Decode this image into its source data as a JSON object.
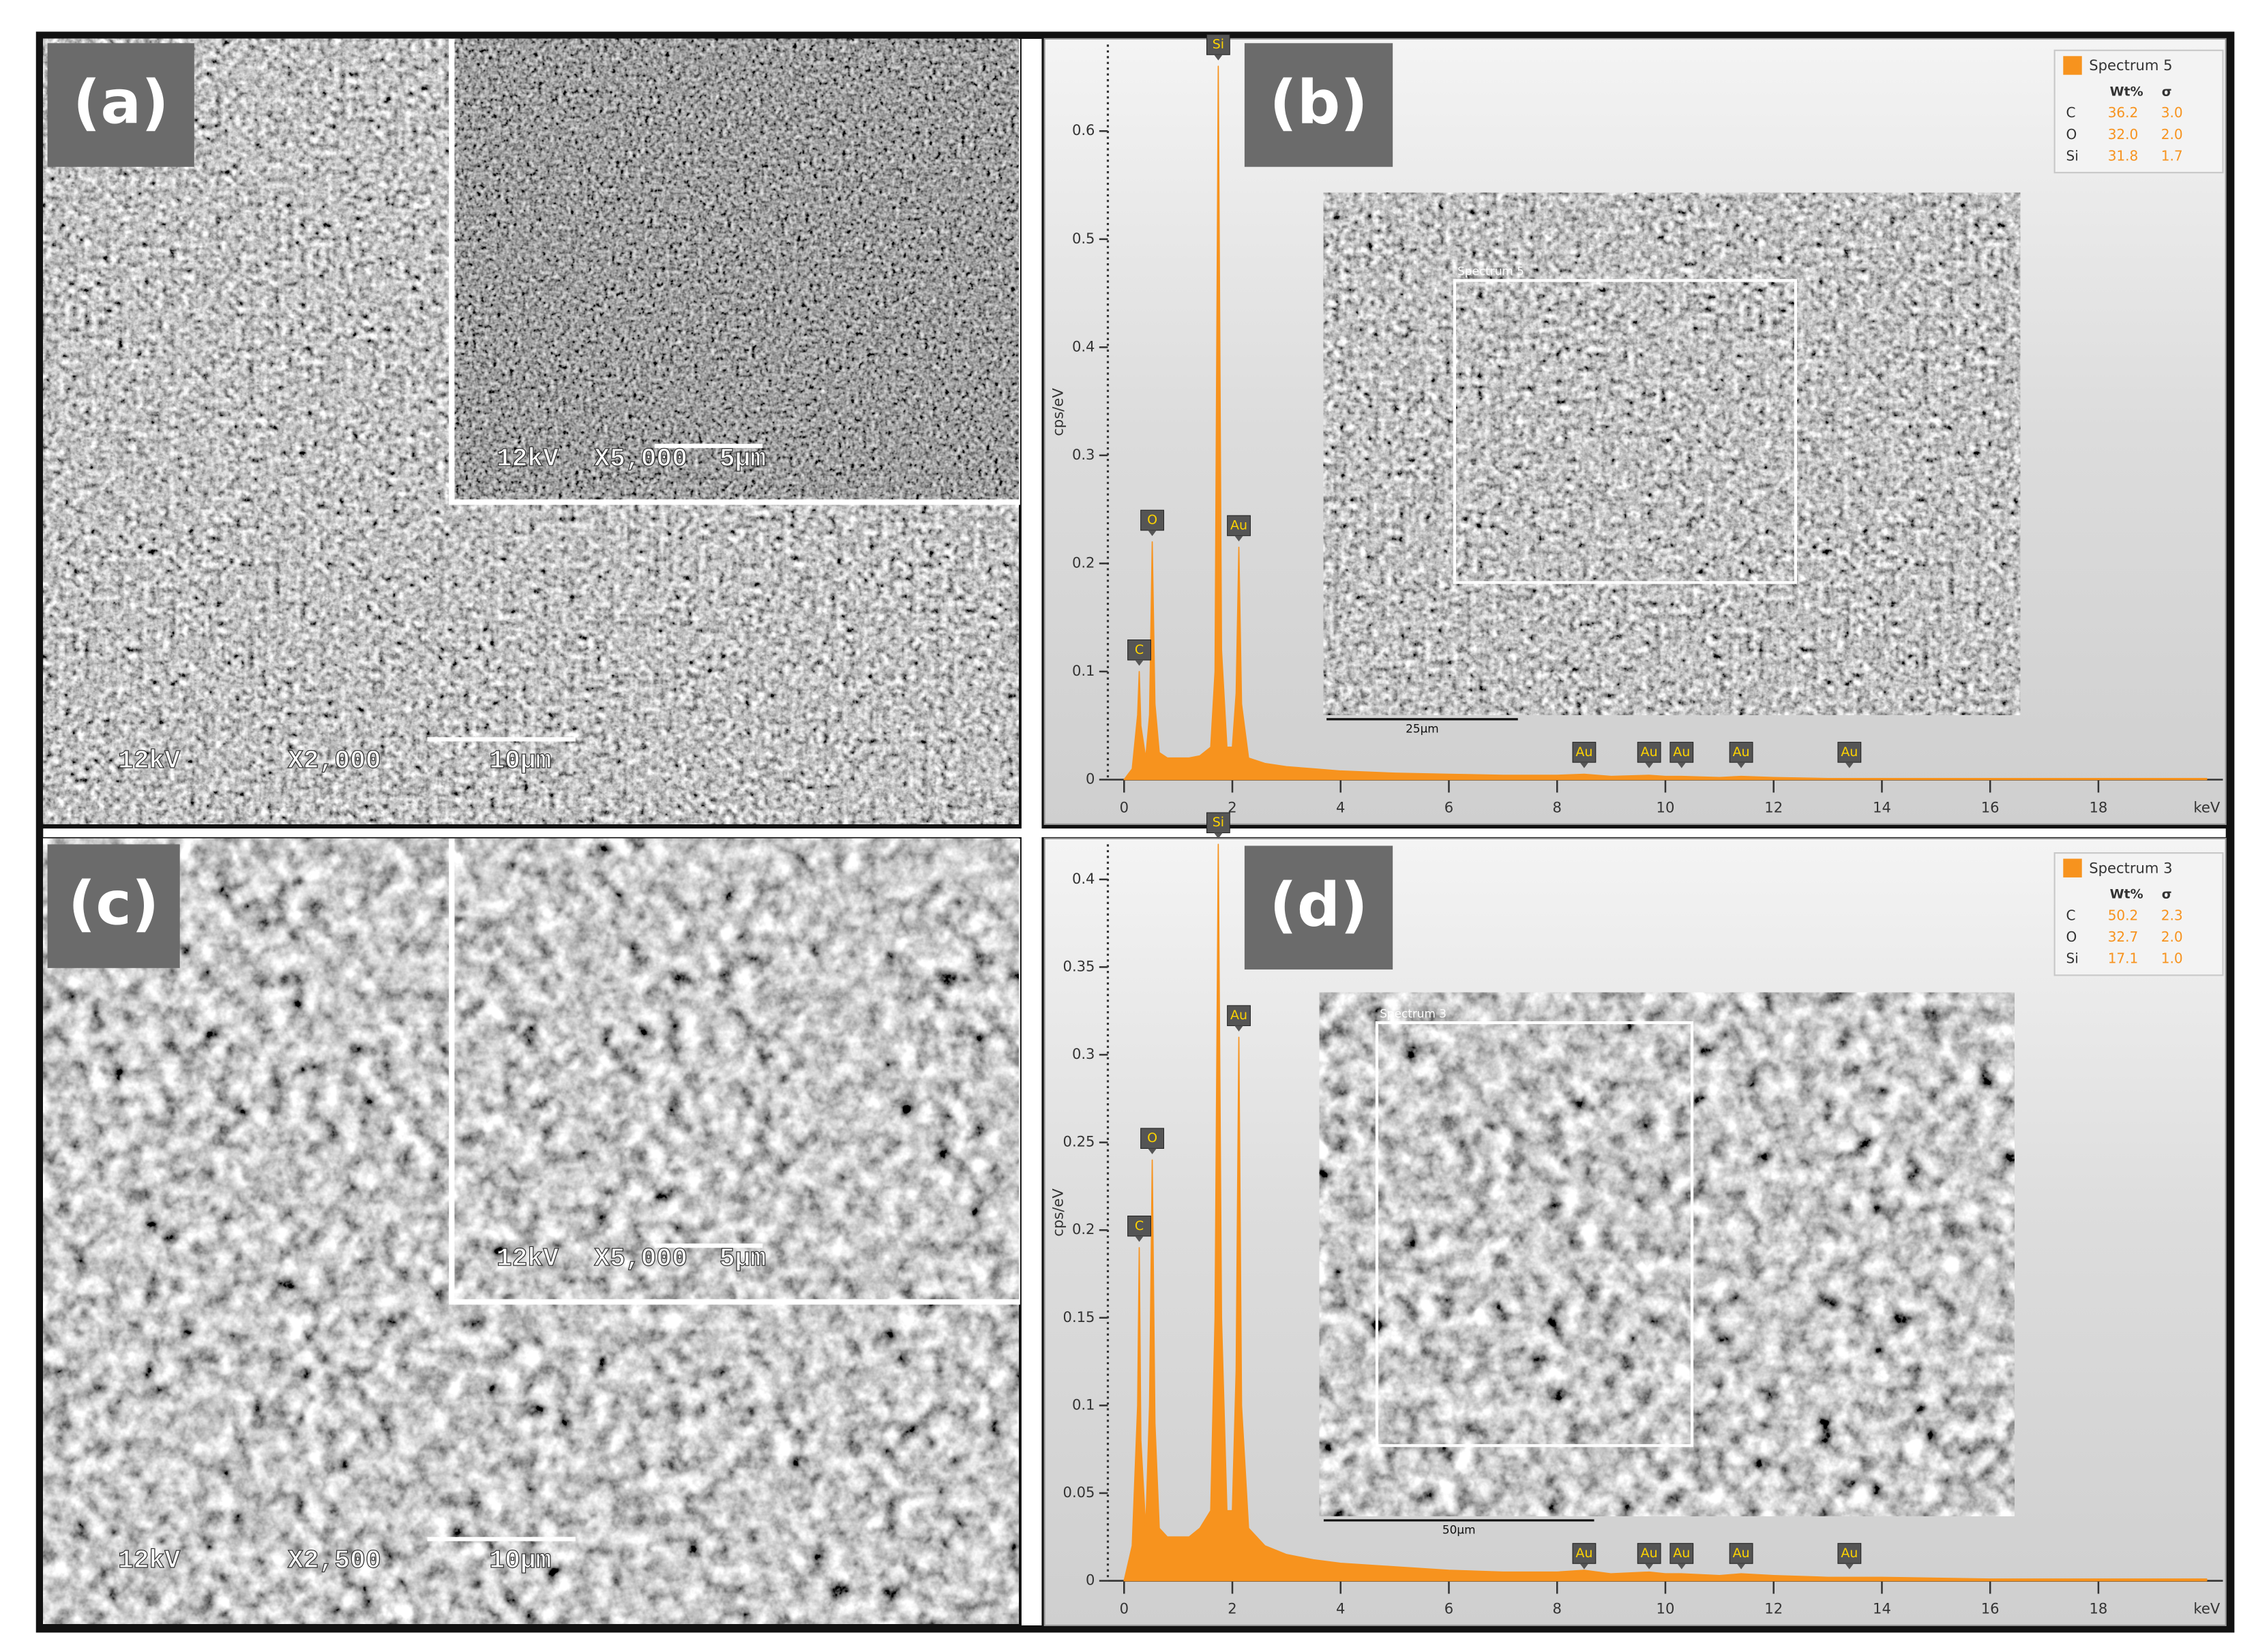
{
  "panels": [
    {
      "label": "(a)",
      "micro": [
        "12kV",
        "X2,000",
        "10μm"
      ],
      "inset_micro": [
        "12kV",
        "X5,000",
        "5μm"
      ]
    },
    {
      "label": "(c)",
      "micro": [
        "12kV",
        "X2,500",
        "10μm"
      ],
      "inset_micro": [
        "12kV",
        "X5,000",
        "5μm"
      ]
    }
  ],
  "chart_data": [
    {
      "type": "area",
      "label": "(b)",
      "ylabel": "cps/eV",
      "xlabel": "keV",
      "x": [
        0,
        0.15,
        0.25,
        0.28,
        0.31,
        0.4,
        0.47,
        0.52,
        0.57,
        0.65,
        0.8,
        1.0,
        1.2,
        1.4,
        1.6,
        1.68,
        1.74,
        1.8,
        1.9,
        2.0,
        2.07,
        2.12,
        2.17,
        2.3,
        2.6,
        3,
        3.5,
        4,
        5,
        6,
        7,
        8,
        8.5,
        9,
        9.7,
        10,
        10.3,
        11,
        11.4,
        12,
        13,
        14,
        16,
        18,
        20
      ],
      "series": [
        {
          "name": "Spectrum 5",
          "color": "#f7931e",
          "values": [
            0,
            0.01,
            0.06,
            0.1,
            0.05,
            0.02,
            0.06,
            0.22,
            0.07,
            0.025,
            0.02,
            0.02,
            0.02,
            0.022,
            0.03,
            0.1,
            0.66,
            0.12,
            0.03,
            0.03,
            0.08,
            0.215,
            0.07,
            0.02,
            0.015,
            0.012,
            0.01,
            0.008,
            0.006,
            0.005,
            0.004,
            0.004,
            0.005,
            0.003,
            0.004,
            0.003,
            0.003,
            0.002,
            0.003,
            0.002,
            0.001,
            0.001,
            0.001,
            0.001,
            0.001
          ]
        }
      ],
      "xlim": [
        -0.3,
        20.3
      ],
      "xticks": [
        0,
        2,
        4,
        6,
        8,
        10,
        12,
        14,
        16,
        18
      ],
      "ylim": [
        0,
        0.68
      ],
      "yticks": [
        0,
        0.1,
        0.2,
        0.3,
        0.4,
        0.5,
        0.6
      ],
      "peaks": [
        {
          "label": "C",
          "x": 0.28
        },
        {
          "label": "O",
          "x": 0.52
        },
        {
          "label": "Si",
          "x": 1.74
        },
        {
          "label": "Au",
          "x": 2.12
        },
        {
          "label": "Au",
          "x": 8.5
        },
        {
          "label": "Au",
          "x": 9.7
        },
        {
          "label": "Au",
          "x": 10.3
        },
        {
          "label": "Au",
          "x": 11.4
        },
        {
          "label": "Au",
          "x": 13.4
        }
      ],
      "table": {
        "header": [
          "Wt%",
          "σ"
        ],
        "rows": [
          [
            "C",
            "36.2",
            "3.0"
          ],
          [
            "O",
            "32.0",
            "2.0"
          ],
          [
            "Si",
            "31.8",
            "1.7"
          ]
        ]
      },
      "inset": {
        "region": "Spectrum 5",
        "scale": "25μm"
      }
    },
    {
      "type": "area",
      "label": "(d)",
      "ylabel": "cps/eV",
      "xlabel": "keV",
      "x": [
        0,
        0.15,
        0.25,
        0.28,
        0.31,
        0.4,
        0.47,
        0.52,
        0.57,
        0.65,
        0.8,
        1.0,
        1.2,
        1.4,
        1.6,
        1.68,
        1.74,
        1.8,
        1.9,
        2.0,
        2.07,
        2.12,
        2.17,
        2.3,
        2.6,
        3,
        3.5,
        4,
        5,
        6,
        7,
        8,
        8.5,
        9,
        9.7,
        10,
        10.3,
        11,
        11.4,
        12,
        13,
        14,
        16,
        18,
        20
      ],
      "series": [
        {
          "name": "Spectrum 3",
          "color": "#f7931e",
          "values": [
            0,
            0.02,
            0.1,
            0.19,
            0.08,
            0.03,
            0.1,
            0.24,
            0.09,
            0.03,
            0.025,
            0.025,
            0.025,
            0.03,
            0.04,
            0.15,
            0.42,
            0.15,
            0.04,
            0.04,
            0.12,
            0.31,
            0.1,
            0.03,
            0.02,
            0.015,
            0.012,
            0.01,
            0.008,
            0.006,
            0.005,
            0.005,
            0.006,
            0.004,
            0.005,
            0.004,
            0.004,
            0.003,
            0.004,
            0.003,
            0.002,
            0.002,
            0.001,
            0.001,
            0.001
          ]
        }
      ],
      "xlim": [
        -0.3,
        20.3
      ],
      "xticks": [
        0,
        2,
        4,
        6,
        8,
        10,
        12,
        14,
        16,
        18
      ],
      "ylim": [
        0,
        0.42
      ],
      "yticks": [
        0,
        0.05,
        0.1,
        0.15,
        0.2,
        0.25,
        0.3,
        0.35,
        0.4
      ],
      "peaks": [
        {
          "label": "C",
          "x": 0.28
        },
        {
          "label": "O",
          "x": 0.52
        },
        {
          "label": "Si",
          "x": 1.74
        },
        {
          "label": "Au",
          "x": 2.12
        },
        {
          "label": "Au",
          "x": 8.5
        },
        {
          "label": "Au",
          "x": 9.7
        },
        {
          "label": "Au",
          "x": 10.3
        },
        {
          "label": "Au",
          "x": 11.4
        },
        {
          "label": "Au",
          "x": 13.4
        }
      ],
      "table": {
        "header": [
          "Wt%",
          "σ"
        ],
        "rows": [
          [
            "C",
            "50.2",
            "2.3"
          ],
          [
            "O",
            "32.7",
            "2.0"
          ],
          [
            "Si",
            "17.1",
            "1.0"
          ]
        ]
      },
      "inset": {
        "region": "Spectrum 3",
        "scale": "50μm"
      }
    }
  ]
}
